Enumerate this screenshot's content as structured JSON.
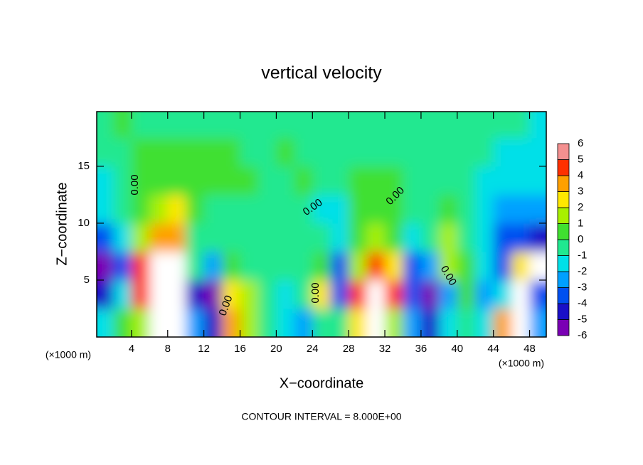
{
  "chart_data": {
    "type": "contour",
    "title": "vertical velocity",
    "x_label": "X−coordinate",
    "y_label": "Z−coordinate",
    "x_unit_label": "(×1000 m)",
    "y_unit_label": "(×1000 m)",
    "footnote": "CONTOUR INTERVAL = 8.000E+00",
    "contour_labels": [
      "0.00",
      "0.00",
      "0.00",
      "0.00",
      "0.00",
      "0.00"
    ],
    "xlim": [
      0,
      50
    ],
    "ylim": [
      0,
      19.8
    ],
    "xticks": [
      4,
      8,
      12,
      16,
      20,
      24,
      28,
      32,
      36,
      40,
      44,
      48
    ],
    "yticks": [
      5,
      10,
      15
    ],
    "x": [
      1,
      3,
      5,
      7,
      9,
      11,
      13,
      15,
      17,
      19,
      21,
      23,
      25,
      27,
      29,
      31,
      33,
      35,
      37,
      39,
      41,
      43,
      45,
      47,
      49
    ],
    "y": [
      1.25,
      3.75,
      6.25,
      8.75,
      11.25,
      13.75,
      16.25,
      18.75
    ],
    "z": [
      [
        -1,
        0.5,
        2,
        8,
        7,
        -2,
        -4,
        4,
        2,
        0,
        -1,
        -2,
        0,
        0,
        3,
        7,
        2,
        -2,
        -4,
        -1,
        0,
        -1,
        4,
        -8,
        -2
      ],
      [
        -4,
        -1,
        5,
        9,
        9,
        -4,
        -5,
        3,
        2,
        0,
        -1,
        0,
        3,
        -3,
        5,
        9,
        5,
        -3,
        -5,
        -2,
        1,
        -2,
        -1,
        -8,
        -3
      ],
      [
        -6,
        -3,
        5,
        7,
        8,
        0,
        -2,
        1,
        0,
        0,
        0,
        -0.5,
        1,
        -3,
        2,
        5,
        3,
        -3,
        -2,
        2,
        1,
        -1,
        -3,
        3,
        -8
      ],
      [
        -3,
        -1,
        2,
        4,
        4,
        0,
        0,
        0,
        0,
        0,
        0,
        0,
        0,
        -1,
        1,
        2,
        1,
        -1,
        0,
        2,
        0,
        -1,
        -3,
        -3,
        -4
      ],
      [
        -1,
        0,
        1,
        2,
        3,
        1,
        0,
        0,
        0,
        0,
        0,
        0,
        -1,
        -1,
        0.5,
        1,
        0.5,
        0,
        0,
        1,
        0,
        -1,
        -2,
        -2,
        -2
      ],
      [
        -1,
        0,
        0.5,
        1,
        1,
        1,
        0.5,
        0.5,
        0.5,
        0,
        0,
        0.5,
        0,
        0,
        0.5,
        0.5,
        0.5,
        0,
        0,
        0,
        0,
        -1,
        -1,
        -1,
        -1
      ],
      [
        0,
        0,
        0.5,
        0.5,
        0.5,
        0.5,
        0.5,
        0.5,
        0,
        0,
        0.5,
        0,
        0,
        0,
        0,
        0,
        0,
        0,
        0,
        0,
        -0.5,
        -0.5,
        -1,
        -1,
        -1
      ],
      [
        0,
        0.5,
        0,
        0,
        0,
        0,
        0,
        0,
        0,
        0,
        0,
        0,
        0,
        0,
        0,
        0,
        0,
        0,
        0,
        0,
        -0.5,
        -0.5,
        -0.5,
        -0.5,
        -1
      ]
    ],
    "colorbar_ticks": [
      -6,
      -5,
      -4,
      -3,
      -2,
      -1,
      0,
      1,
      2,
      3,
      4,
      5,
      6
    ],
    "colorbar_colors": [
      "#7a00b4",
      "#1a10c8",
      "#0050f0",
      "#00a0ff",
      "#00e0e8",
      "#20e890",
      "#40e030",
      "#a8f000",
      "#ffe800",
      "#ffa000",
      "#ff3000",
      "#f49090"
    ],
    "out_of_range_color": "#ffffff"
  }
}
